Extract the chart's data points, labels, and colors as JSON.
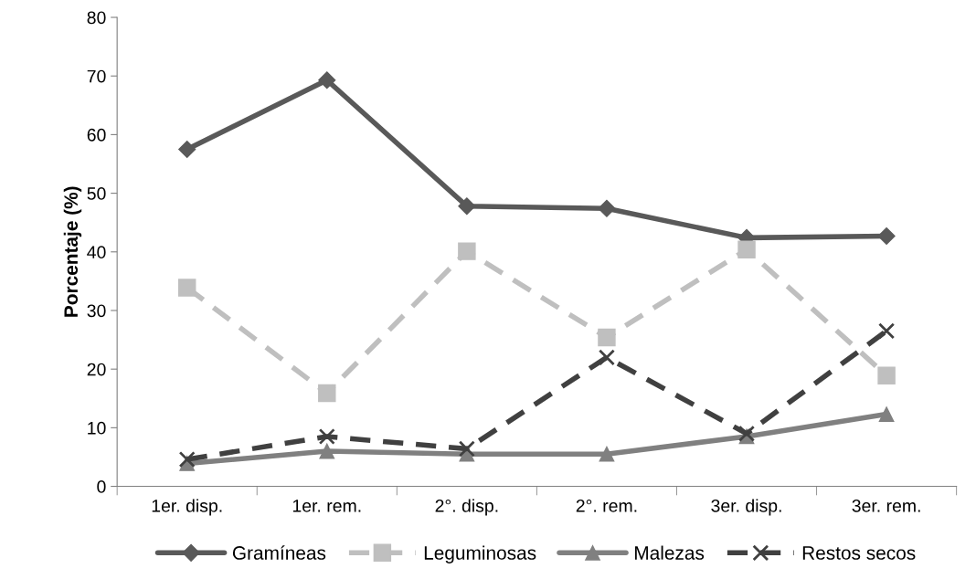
{
  "chart_data": {
    "type": "line",
    "ylabel": "Porcentaje (%)",
    "categories": [
      "1er. disp.",
      "1er. rem.",
      "2°. disp.",
      "2°. rem.",
      "3er. disp.",
      "3er. rem."
    ],
    "series": [
      {
        "name": "Gramíneas",
        "color": "#595959",
        "marker": "diamond",
        "line_style": "solid",
        "values": [
          57.5,
          69.3,
          47.8,
          47.4,
          42.4,
          42.7
        ]
      },
      {
        "name": "Leguminosas",
        "color": "#bfbfbf",
        "marker": "square",
        "line_style": "dashed",
        "values": [
          33.9,
          15.9,
          40.1,
          25.4,
          40.4,
          18.9
        ]
      },
      {
        "name": "Malezas",
        "color": "#808080",
        "marker": "triangle",
        "line_style": "solid",
        "values": [
          3.9,
          6.0,
          5.5,
          5.5,
          8.5,
          12.3
        ]
      },
      {
        "name": "Restos secos",
        "color": "#404040",
        "marker": "cross",
        "line_style": "dashed",
        "values": [
          4.6,
          8.5,
          6.4,
          22.0,
          9.0,
          26.5
        ]
      }
    ],
    "ylim": [
      0,
      80
    ],
    "yticks": [
      0,
      10,
      20,
      30,
      40,
      50,
      60,
      70,
      80
    ],
    "grid": false,
    "legend": "bottom"
  }
}
